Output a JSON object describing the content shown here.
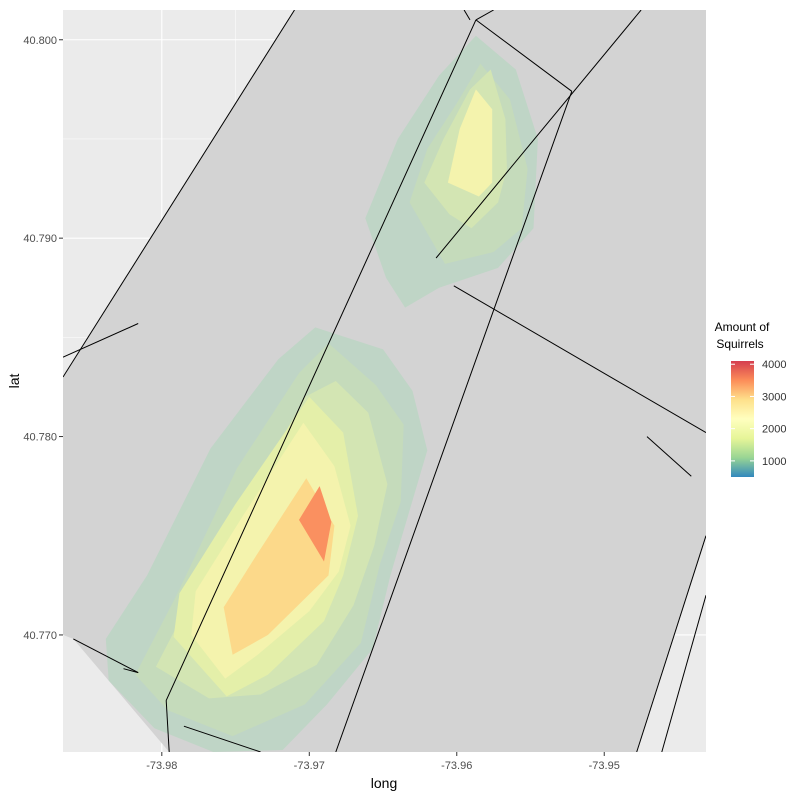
{
  "chart_data": {
    "type": "heatmap",
    "subtype": "density-contour-over-map",
    "xlabel": "long",
    "ylabel": "lat",
    "xlim": [
      -73.9867,
      -73.9431
    ],
    "ylim": [
      40.7641,
      40.8015
    ],
    "x_ticks": [
      {
        "value": -73.98,
        "label": "-73.98"
      },
      {
        "value": -73.97,
        "label": "-73.97"
      },
      {
        "value": -73.96,
        "label": "-73.96"
      },
      {
        "value": -73.95,
        "label": "-73.95"
      }
    ],
    "y_ticks": [
      {
        "value": 40.77,
        "label": "40.770"
      },
      {
        "value": 40.78,
        "label": "40.780"
      },
      {
        "value": 40.79,
        "label": "40.790"
      },
      {
        "value": 40.8,
        "label": "40.800"
      }
    ],
    "grid": true,
    "legend": {
      "title_lines": [
        "Amount of",
        "Squirrels"
      ],
      "placement": "right",
      "range": [
        500,
        4100
      ],
      "breaks": [
        {
          "value": 4000,
          "label": "4000"
        },
        {
          "value": 3000,
          "label": "3000"
        },
        {
          "value": 2000,
          "label": "2000"
        },
        {
          "value": 1000,
          "label": "1000"
        }
      ],
      "colors": [
        "#3288bd",
        "#99d594",
        "#e6f598",
        "#ffffbf",
        "#fee08b",
        "#fc8d59",
        "#d53e4f"
      ]
    },
    "colors": {
      "panel_background": "#ebebeb",
      "land": "#d3d3d3",
      "boundary": "#000000"
    },
    "map_boundaries": [
      [
        [
          -73.9816,
          40.7681
        ],
        [
          -73.9826,
          40.7683
        ]
      ],
      [
        [
          -73.9816,
          40.7681
        ],
        [
          -73.986,
          40.7698
        ]
      ],
      [
        [
          -73.9797,
          40.7667
        ],
        [
          -73.9795,
          40.7641
        ]
      ],
      [
        [
          -73.9785,
          40.7654
        ],
        [
          -73.9733,
          40.7641
        ]
      ],
      [
        [
          -73.9587,
          40.801
        ],
        [
          -73.9522,
          40.7974
        ]
      ],
      [
        [
          -73.9522,
          40.7974
        ],
        [
          -73.9682,
          40.7641
        ]
      ],
      [
        [
          -73.9587,
          40.801
        ],
        [
          -73.9797,
          40.7667
        ]
      ],
      [
        [
          -73.9587,
          40.801
        ],
        [
          -73.9575,
          40.8015
        ]
      ],
      [
        [
          -73.9591,
          40.801
        ],
        [
          -73.9595,
          40.8015
        ]
      ],
      [
        [
          -73.9867,
          40.783
        ],
        [
          -73.971,
          40.8015
        ]
      ],
      [
        [
          -73.9867,
          40.784
        ],
        [
          -73.9816,
          40.7857
        ]
      ],
      [
        [
          -73.9602,
          40.7876
        ],
        [
          -73.9431,
          40.7802
        ]
      ],
      [
        [
          -73.9475,
          40.8015
        ],
        [
          -73.9614,
          40.789
        ]
      ],
      [
        [
          -73.9478,
          40.7641
        ],
        [
          -73.9431,
          40.775
        ]
      ],
      [
        [
          -73.9471,
          40.78
        ],
        [
          -73.9441,
          40.778
        ]
      ],
      [
        [
          -73.9461,
          40.7641
        ],
        [
          -73.9431,
          40.772
        ]
      ]
    ],
    "density_levels": [
      {
        "level": 500,
        "color": "#bfd5c6",
        "polygons": [
          [
            [
              -73.9838,
              40.7698
            ],
            [
              -73.981,
              40.773
            ],
            [
              -73.9767,
              40.7794
            ],
            [
              -73.9721,
              40.7839
            ],
            [
              -73.9696,
              40.7855
            ],
            [
              -73.965,
              40.7844
            ],
            [
              -73.963,
              40.7823
            ],
            [
              -73.962,
              40.7793
            ],
            [
              -73.9645,
              40.773
            ],
            [
              -73.9657,
              40.7693
            ],
            [
              -73.9688,
              40.7665
            ],
            [
              -73.9718,
              40.7642
            ],
            [
              -73.9765,
              40.7641
            ],
            [
              -73.9805,
              40.7653
            ],
            [
              -73.9836,
              40.7677
            ]
          ],
          [
            [
              -73.9648,
              40.788
            ],
            [
              -73.9662,
              40.791
            ],
            [
              -73.964,
              40.795
            ],
            [
              -73.9612,
              40.7982
            ],
            [
              -73.9587,
              40.8002
            ],
            [
              -73.956,
              40.7985
            ],
            [
              -73.9545,
              40.795
            ],
            [
              -73.9548,
              40.7905
            ],
            [
              -73.9572,
              40.7885
            ],
            [
              -73.9612,
              40.7875
            ],
            [
              -73.9635,
              40.7865
            ]
          ]
        ]
      },
      {
        "level": 1000,
        "color": "#c5dbbb",
        "polygons": [
          [
            [
              -73.9818,
              40.768
            ],
            [
              -73.979,
              40.772
            ],
            [
              -73.9749,
              40.7784
            ],
            [
              -73.9707,
              40.7832
            ],
            [
              -73.9687,
              40.7847
            ],
            [
              -73.9655,
              40.7826
            ],
            [
              -73.9636,
              40.7806
            ],
            [
              -73.9638,
              40.7767
            ],
            [
              -73.9652,
              40.7736
            ],
            [
              -73.9665,
              40.7696
            ],
            [
              -73.9703,
              40.7665
            ],
            [
              -73.9752,
              40.7649
            ],
            [
              -73.9796,
              40.7662
            ]
          ],
          [
            [
              -73.9632,
              40.7918
            ],
            [
              -73.962,
              40.7945
            ],
            [
              -73.96,
              40.7968
            ],
            [
              -73.9584,
              40.7988
            ],
            [
              -73.9564,
              40.797
            ],
            [
              -73.9552,
              40.7935
            ],
            [
              -73.9556,
              40.7905
            ],
            [
              -73.9575,
              40.7893
            ],
            [
              -73.9608,
              40.7887
            ]
          ]
        ]
      },
      {
        "level": 1500,
        "color": "#d3e5b3",
        "polygons": [
          [
            [
              -73.9804,
              40.7684
            ],
            [
              -73.9779,
              40.772
            ],
            [
              -73.9743,
              40.7766
            ],
            [
              -73.9703,
              40.782
            ],
            [
              -73.9682,
              40.7828
            ],
            [
              -73.966,
              40.7812
            ],
            [
              -73.9647,
              40.7776
            ],
            [
              -73.9656,
              40.7745
            ],
            [
              -73.967,
              40.7715
            ],
            [
              -73.9695,
              40.7685
            ],
            [
              -73.9733,
              40.767
            ],
            [
              -73.9768,
              40.7668
            ]
          ],
          [
            [
              -73.9622,
              40.7928
            ],
            [
              -73.9609,
              40.795
            ],
            [
              -73.9591,
              40.7975
            ],
            [
              -73.9577,
              40.7985
            ],
            [
              -73.9567,
              40.796
            ],
            [
              -73.9566,
              40.7935
            ],
            [
              -73.9572,
              40.7918
            ],
            [
              -73.959,
              40.7905
            ],
            [
              -73.9605,
              40.7912
            ]
          ]
        ]
      },
      {
        "level": 2000,
        "color": "#e4efa9",
        "polygons": [
          [
            [
              -73.9792,
              40.7699
            ],
            [
              -73.9788,
              40.7721
            ],
            [
              -73.975,
              40.7766
            ],
            [
              -73.97,
              40.782
            ],
            [
              -73.9677,
              40.7802
            ],
            [
              -73.9667,
              40.776
            ],
            [
              -73.9677,
              40.773
            ],
            [
              -73.969,
              40.7707
            ],
            [
              -73.9728,
              40.768
            ],
            [
              -73.9756,
              40.7669
            ]
          ]
        ]
      },
      {
        "level": 2500,
        "color": "#f4f3ad",
        "polygons": [
          [
            [
              -73.978,
              40.77
            ],
            [
              -73.9777,
              40.7722
            ],
            [
              -73.9745,
              40.776
            ],
            [
              -73.9704,
              40.7807
            ],
            [
              -73.9683,
              40.7785
            ],
            [
              -73.9672,
              40.7755
            ],
            [
              -73.968,
              40.7732
            ],
            [
              -73.97,
              40.7712
            ],
            [
              -73.9735,
              40.769
            ],
            [
              -73.9757,
              40.7678
            ]
          ],
          [
            [
              -73.9606,
              40.7928
            ],
            [
              -73.9598,
              40.7955
            ],
            [
              -73.9587,
              40.7975
            ],
            [
              -73.9576,
              40.7965
            ],
            [
              -73.9576,
              40.7928
            ],
            [
              -73.9585,
              40.7921
            ]
          ]
        ]
      },
      {
        "level": 3000,
        "color": "#fcd98a",
        "polygons": [
          [
            [
              -73.9758,
              40.7714
            ],
            [
              -73.9736,
              40.774
            ],
            [
              -73.9702,
              40.7779
            ],
            [
              -73.9683,
              40.7755
            ],
            [
              -73.9687,
              40.773
            ],
            [
              -73.9728,
              40.77
            ],
            [
              -73.9752,
              40.769
            ]
          ]
        ]
      },
      {
        "level": 3500,
        "color": "#fa9060",
        "polygons": [
          [
            [
              -73.9707,
              40.7758
            ],
            [
              -73.9693,
              40.7775
            ],
            [
              -73.9685,
              40.7757
            ],
            [
              -73.969,
              40.7737
            ]
          ]
        ]
      }
    ]
  }
}
